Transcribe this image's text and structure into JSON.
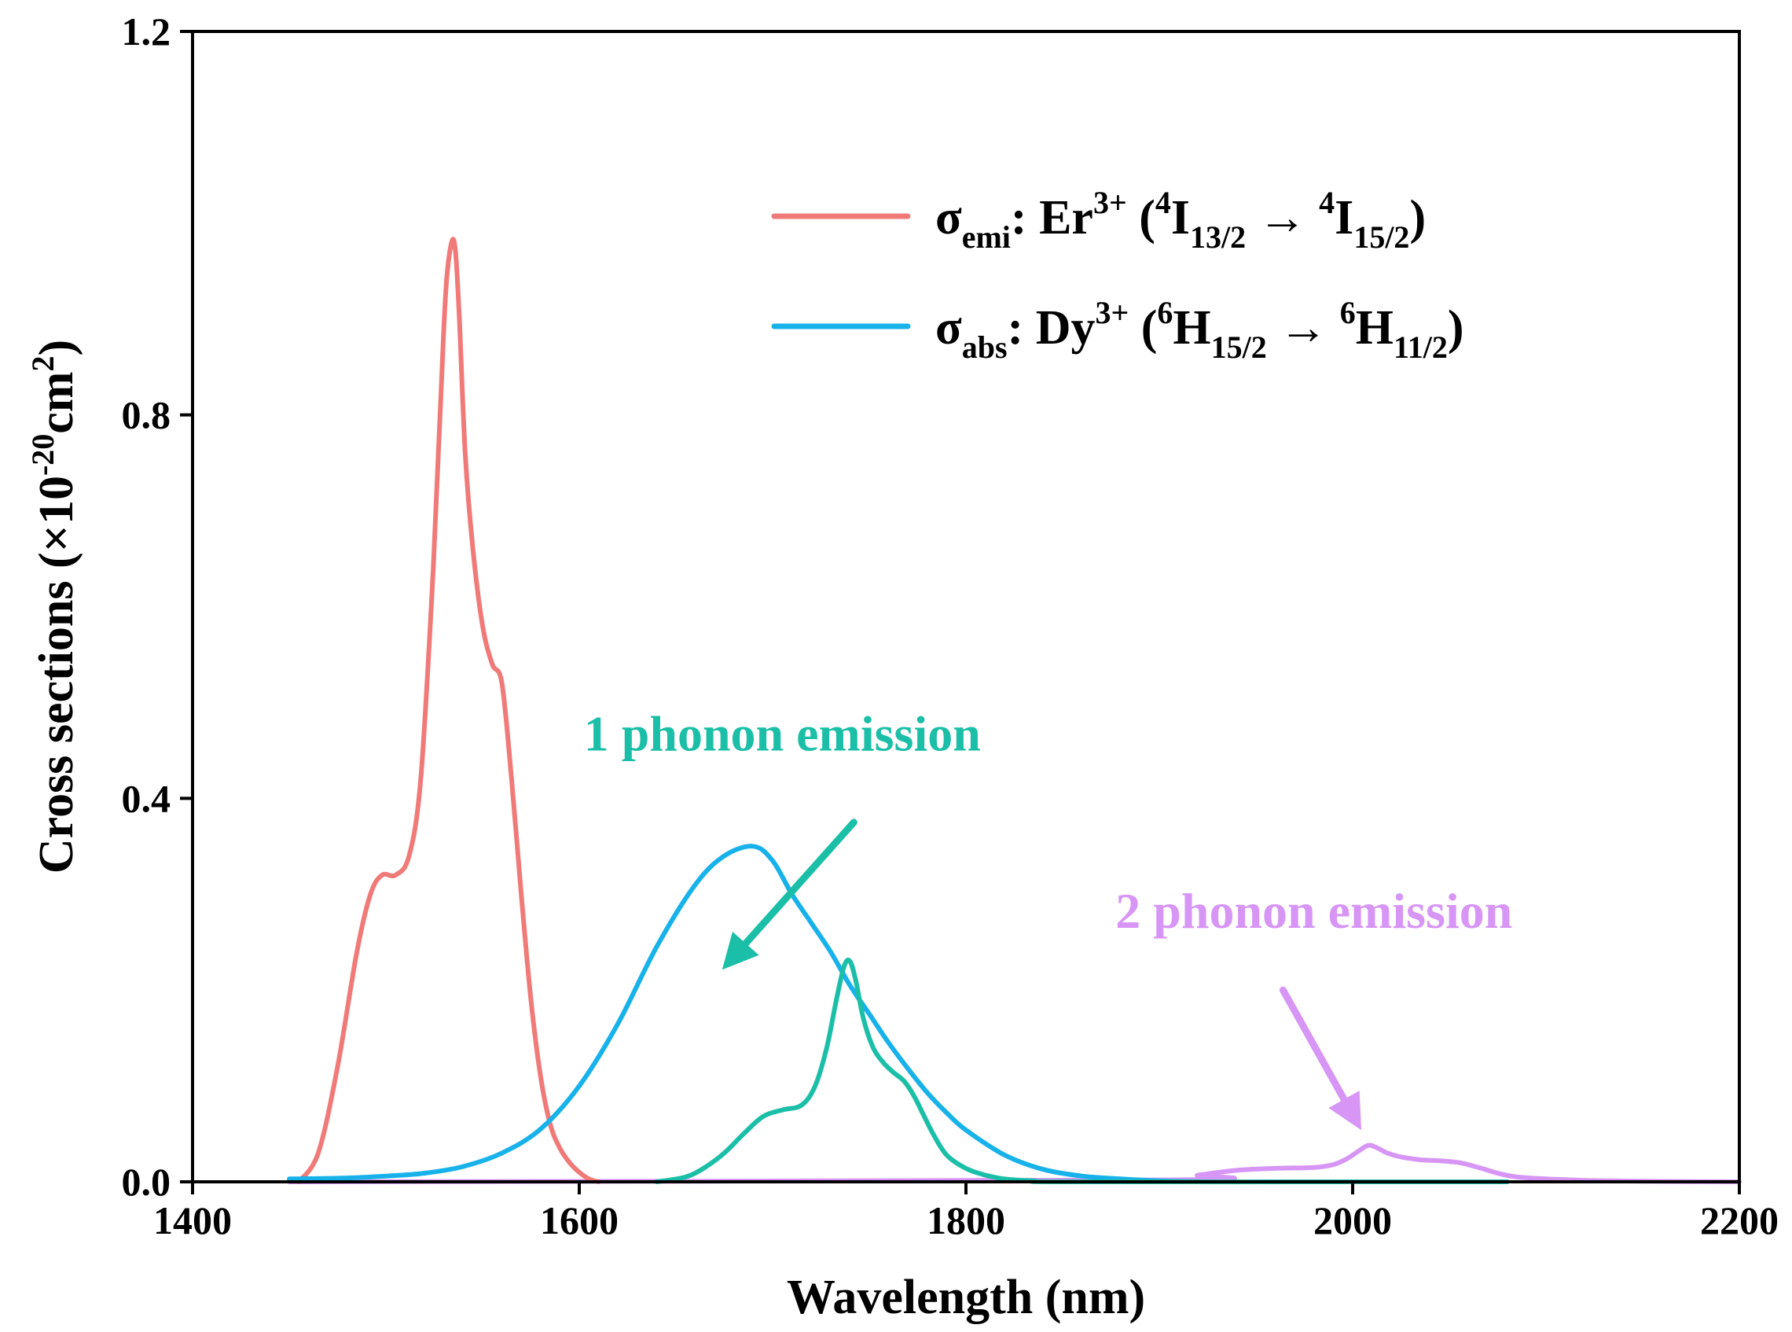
{
  "chart_data": {
    "type": "line",
    "title": "",
    "xlabel": "Wavelength (nm)",
    "ylabel": {
      "main": "Cross sections (×10",
      "exp": "-20",
      "mid": "cm",
      "exp2": "2",
      "end": ")"
    },
    "xlim": [
      1400,
      2200
    ],
    "ylim": [
      0,
      1.2
    ],
    "xticks": [
      "1400",
      "1600",
      "1800",
      "2000",
      "2200"
    ],
    "xtick_values": [
      1400,
      1600,
      1800,
      2000,
      2200
    ],
    "yticks": [
      "0.0",
      "0.4",
      "0.8",
      "1.2"
    ],
    "ytick_values": [
      0,
      0.4,
      0.8,
      1.2
    ],
    "grid": false,
    "legend_position": "top-right",
    "legend": [
      {
        "series": "emi",
        "sigma": "σ",
        "sub": "emi",
        "ion": ": Er",
        "ion_sup": "3+",
        "open": " (",
        "lvl1_sup": "4",
        "lvl1": "I",
        "lvl1_sub": "13/2",
        "arrow": " → ",
        "lvl2_sup": "4",
        "lvl2": "I",
        "lvl2_sub": "15/2",
        "close": ")"
      },
      {
        "series": "abs",
        "sigma": "σ",
        "sub": "abs",
        "ion": ": Dy",
        "ion_sup": "3+",
        "open": " (",
        "lvl1_sup": "6",
        "lvl1": "H",
        "lvl1_sub": "15/2",
        "arrow": " → ",
        "lvl2_sup": "6",
        "lvl2": "H",
        "lvl2_sub": "11/2",
        "close": ")"
      }
    ],
    "series": [
      {
        "name": "σemi: Er3+ (4I13/2 → 4I15/2)",
        "key": "emi",
        "color": "#f07a78",
        "x": [
          1455,
          1465,
          1475,
          1485,
          1492,
          1498,
          1505,
          1512,
          1518,
          1524,
          1528,
          1531,
          1534,
          1536,
          1538,
          1541,
          1545,
          1550,
          1555,
          1560,
          1565,
          1570,
          1575,
          1580,
          1585,
          1590,
          1595,
          1600,
          1605,
          1610
        ],
        "y": [
          0.0,
          0.03,
          0.12,
          0.24,
          0.3,
          0.32,
          0.32,
          0.34,
          0.42,
          0.62,
          0.8,
          0.93,
          0.98,
          0.97,
          0.9,
          0.76,
          0.66,
          0.58,
          0.54,
          0.52,
          0.42,
          0.3,
          0.19,
          0.11,
          0.06,
          0.035,
          0.02,
          0.01,
          0.003,
          0.0
        ]
      },
      {
        "name": "σabs: Dy3+ (6H15/2 → 6H11/2)",
        "key": "abs",
        "color": "#18b2ea",
        "x": [
          1450,
          1480,
          1500,
          1520,
          1540,
          1560,
          1580,
          1600,
          1620,
          1640,
          1660,
          1675,
          1690,
          1700,
          1710,
          1720,
          1730,
          1740,
          1750,
          1760,
          1770,
          1780,
          1790,
          1800,
          1820,
          1840,
          1860,
          1880,
          1900,
          1920
        ],
        "y": [
          0.003,
          0.004,
          0.006,
          0.009,
          0.016,
          0.03,
          0.055,
          0.1,
          0.165,
          0.245,
          0.31,
          0.34,
          0.35,
          0.335,
          0.3,
          0.27,
          0.24,
          0.205,
          0.175,
          0.145,
          0.118,
          0.093,
          0.072,
          0.054,
          0.028,
          0.013,
          0.006,
          0.003,
          0.001,
          0.0
        ]
      },
      {
        "name": "1 phonon emission",
        "key": "p1",
        "color": "#1bbfa7",
        "x": [
          1640,
          1655,
          1665,
          1675,
          1685,
          1695,
          1705,
          1715,
          1722,
          1728,
          1733,
          1737,
          1740,
          1743,
          1747,
          1752,
          1757,
          1762,
          1768,
          1773,
          1778,
          1783,
          1790,
          1800,
          1810,
          1820,
          1835,
          1850,
          2000,
          2080
        ],
        "y": [
          0.0,
          0.005,
          0.015,
          0.03,
          0.05,
          0.068,
          0.075,
          0.08,
          0.1,
          0.14,
          0.19,
          0.225,
          0.23,
          0.21,
          0.17,
          0.14,
          0.125,
          0.115,
          0.105,
          0.09,
          0.07,
          0.05,
          0.028,
          0.014,
          0.007,
          0.003,
          0.001,
          0.0,
          0.0,
          0.0
        ]
      },
      {
        "name": "2 phonon emission",
        "key": "p2",
        "color": "#d795f5",
        "x": [
          1450,
          1900,
          1920,
          1940,
          1960,
          1980,
          1990,
          1997,
          2003,
          2008,
          2012,
          2018,
          2025,
          2035,
          2045,
          2055,
          2065,
          2075,
          2085,
          2100,
          2120,
          2140,
          2160,
          2200
        ],
        "y": [
          0.0,
          0.002,
          0.007,
          0.012,
          0.014,
          0.015,
          0.018,
          0.024,
          0.032,
          0.038,
          0.036,
          0.03,
          0.026,
          0.023,
          0.022,
          0.02,
          0.015,
          0.009,
          0.005,
          0.003,
          0.0015,
          0.0008,
          0.0004,
          0.0
        ]
      }
    ],
    "annotations": [
      {
        "key": "p1",
        "text": "1 phonon emission",
        "color": "#1bbfa7",
        "text_at": [
          1705,
          0.45
        ],
        "arrow_from": [
          1742,
          0.375
        ],
        "arrow_to": [
          1680,
          0.235
        ]
      },
      {
        "key": "p2",
        "text": "2 phonon emission",
        "color": "#d795f5",
        "text_at": [
          1980,
          0.265
        ],
        "arrow_from": [
          1964,
          0.2
        ],
        "arrow_to": [
          2000,
          0.07
        ]
      }
    ]
  }
}
